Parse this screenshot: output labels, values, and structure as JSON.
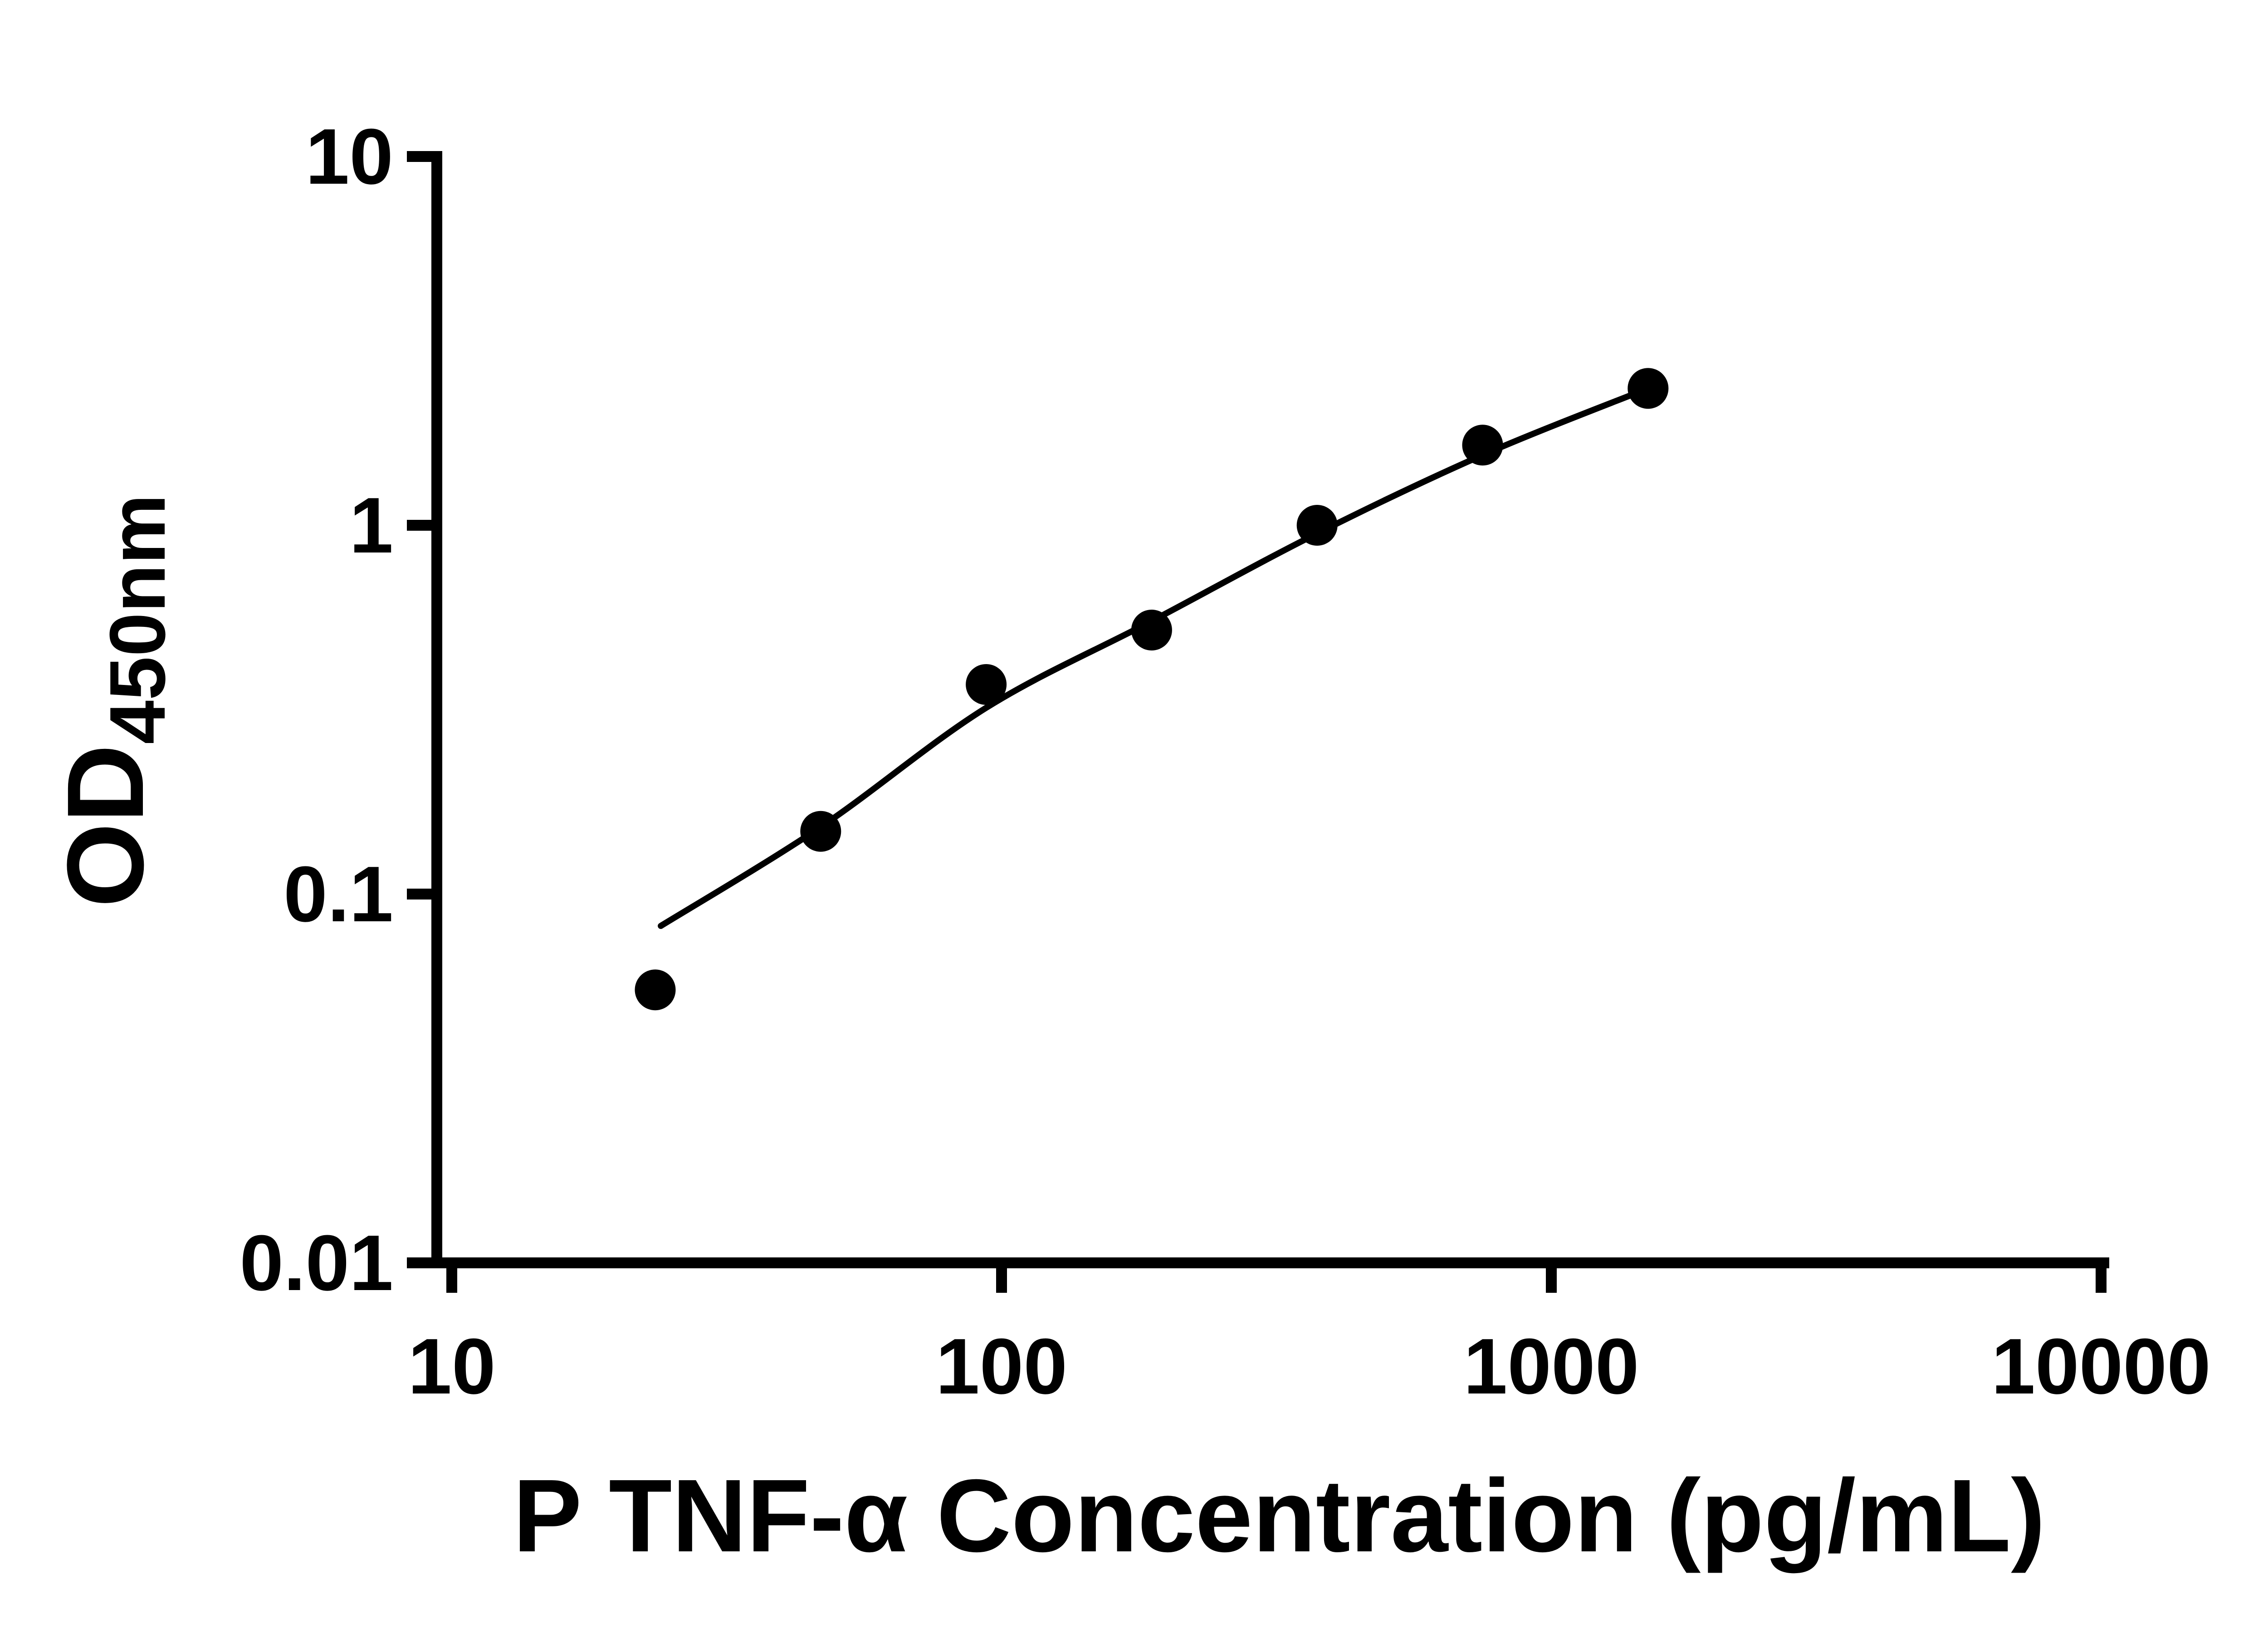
{
  "chart_data": {
    "type": "scatter",
    "title": "",
    "xlabel": "P TNF-α Concentration (pg/mL)",
    "ylabel": "OD450nm",
    "ylabel_main": "OD",
    "ylabel_sub": "450nm",
    "x_scale": "log",
    "y_scale": "log",
    "xlim": [
      10,
      10000
    ],
    "ylim": [
      0.01,
      10
    ],
    "grid": false,
    "legend": null,
    "x_tick_values": [
      10,
      100,
      1000,
      10000
    ],
    "x_tick_labels": [
      "10",
      "100",
      "1000",
      "10000"
    ],
    "y_tick_values": [
      0.01,
      0.1,
      1,
      10
    ],
    "y_tick_labels": [
      "0.01",
      "0.1",
      "1",
      "10"
    ],
    "series": [
      {
        "name": "P TNF-α standard points",
        "type": "scatter",
        "marker": "filled-circle",
        "color": "#000000",
        "x": [
          23.44,
          46.88,
          93.75,
          187.5,
          375,
          750,
          1500
        ],
        "y": [
          0.055,
          0.148,
          0.37,
          0.52,
          1.0,
          1.65,
          2.35
        ]
      },
      {
        "name": "fit curve",
        "type": "line",
        "color": "#000000",
        "x": [
          24,
          46.88,
          93.75,
          187.5,
          375,
          750,
          1500
        ],
        "y": [
          0.082,
          0.152,
          0.32,
          0.55,
          0.95,
          1.55,
          2.35
        ]
      }
    ],
    "colors": {
      "axis": "#000000",
      "text": "#000000",
      "points": "#000000",
      "curve": "#000000",
      "background": "#ffffff"
    }
  }
}
